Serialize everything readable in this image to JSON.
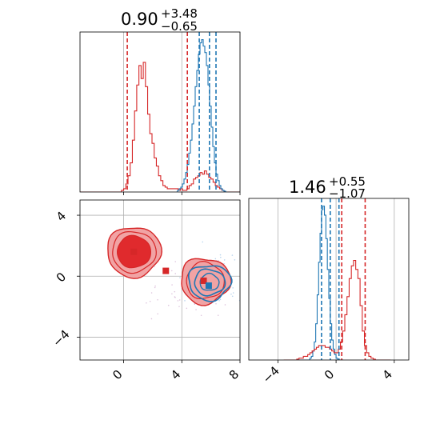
{
  "chart_data": {
    "type": "corner",
    "colors": {
      "red": "#d62728",
      "red_fill": "#f1a3a4",
      "red_core": "#e02a2d",
      "blue": "#1f77b4",
      "grid": "#b0b0b0"
    },
    "panels": [
      {
        "id": "hist_x",
        "type": "histogram",
        "title": "0.90",
        "title_upper": "+3.48",
        "title_lower": "−0.65",
        "xlim": [
          -3,
          8
        ],
        "xticks": [
          0,
          4,
          8
        ],
        "ytick_label": false,
        "red_dashed_lines": [
          0.25,
          4.38
        ],
        "blue_dashed_lines": [
          5.2,
          5.9,
          6.35
        ],
        "series": [
          {
            "name": "",
            "color": "red",
            "bin_start": -3.0,
            "bin_width": 0.15,
            "counts": [
              0,
              0,
              0,
              0,
              0,
              0,
              0,
              0,
              0,
              0,
              0,
              0,
              0,
              0,
              0,
              0,
              0,
              0,
              0,
              0.01,
              0.02,
              0.05,
              0.1,
              0.18,
              0.32,
              0.5,
              0.66,
              0.78,
              0.7,
              0.8,
              0.65,
              0.48,
              0.36,
              0.3,
              0.21,
              0.16,
              0.1,
              0.07,
              0.04,
              0.03,
              0.02,
              0.02,
              0.02,
              0.02,
              0.02,
              0.01,
              0.02,
              0.01,
              0.01,
              0.02,
              0.04,
              0.05,
              0.08,
              0.09,
              0.1,
              0.12,
              0.11,
              0.13,
              0.11,
              0.09,
              0.08,
              0.06,
              0.04,
              0.03,
              0.02,
              0.01,
              0,
              0,
              0,
              0,
              0,
              0,
              0,
              0
            ]
          },
          {
            "name": "",
            "color": "blue",
            "bin_start": 3.6,
            "bin_width": 0.11,
            "counts": [
              0,
              0.01,
              0.02,
              0.03,
              0.05,
              0.08,
              0.12,
              0.17,
              0.24,
              0.32,
              0.42,
              0.53,
              0.65,
              0.75,
              0.85,
              0.92,
              0.94,
              0.9,
              0.86,
              0.78,
              0.66,
              0.53,
              0.4,
              0.28,
              0.18,
              0.11,
              0.07,
              0.04,
              0.02,
              0.01,
              0.005,
              0
            ]
          }
        ]
      },
      {
        "id": "hist_y",
        "type": "histogram",
        "title": "1.46",
        "title_upper": "+0.55",
        "title_lower": "−1.07",
        "xlim": [
          -6,
          5
        ],
        "xticks": [
          -4,
          0,
          4
        ],
        "xtick_labels": [
          "−4",
          "0",
          "4"
        ],
        "ytick_label": false,
        "red_dashed_lines": [
          0.39,
          2.0
        ],
        "blue_dashed_lines": [
          -1.0,
          -0.4,
          0.2
        ],
        "series": [
          {
            "name": "",
            "color": "blue",
            "bin_start": -3.0,
            "bin_width": 0.1,
            "counts": [
              0,
              0,
              0,
              0,
              0,
              0,
              0,
              0,
              0,
              0,
              0,
              0,
              0.01,
              0.02,
              0.05,
              0.1,
              0.2,
              0.36,
              0.54,
              0.7,
              0.83,
              0.85,
              0.8,
              0.67,
              0.5,
              0.34,
              0.2,
              0.11,
              0.06,
              0.03,
              0.01,
              0,
              0,
              0,
              0
            ]
          },
          {
            "name": "",
            "color": "red",
            "bin_start": -3.6,
            "bin_width": 0.15,
            "counts": [
              0,
              0,
              0,
              0,
              0,
              0,
              0.005,
              0.01,
              0.01,
              0.02,
              0.02,
              0.03,
              0.04,
              0.05,
              0.06,
              0.07,
              0.08,
              0.08,
              0.08,
              0.07,
              0.07,
              0.06,
              0.05,
              0.04,
              0.04,
              0.06,
              0.1,
              0.16,
              0.25,
              0.35,
              0.45,
              0.52,
              0.55,
              0.5,
              0.45,
              0.3,
              0.16,
              0.08,
              0.04,
              0.02,
              0.01,
              0.005,
              0,
              0,
              0,
              0,
              0,
              0,
              0
            ]
          }
        ]
      },
      {
        "id": "scatter_xy",
        "type": "contour_scatter",
        "xlim": [
          -3,
          8
        ],
        "ylim": [
          -5.5,
          5
        ],
        "xticks": [
          0,
          4,
          8
        ],
        "yticks": [
          -4,
          0,
          4
        ],
        "ytick_labels": [
          "−4",
          "0",
          "4"
        ],
        "red_mode_center": [
          0.7,
          1.6
        ],
        "red_mode2_center": [
          5.6,
          -0.3
        ],
        "blue_mode_center": [
          5.9,
          -0.4
        ],
        "markers": [
          {
            "x": 0.7,
            "y": 1.6,
            "color": "red"
          },
          {
            "x": 2.9,
            "y": 0.35,
            "color": "red"
          },
          {
            "x": 5.5,
            "y": -0.3,
            "color": "red"
          },
          {
            "x": 5.85,
            "y": -0.62,
            "color": "blue"
          }
        ]
      }
    ]
  }
}
